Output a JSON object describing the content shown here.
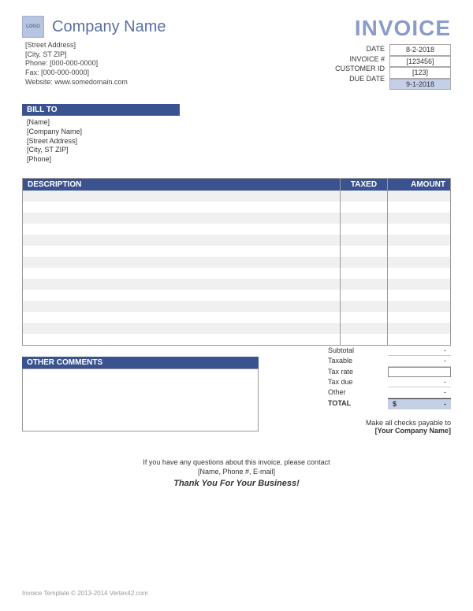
{
  "colors": {
    "brand": "#3a5390",
    "brand_light": "#8a9cc9",
    "highlight": "#c5cfe8",
    "stripe": "#f0f0f0"
  },
  "header": {
    "company_name": "Company Name",
    "logo_text": "LOGO",
    "address": {
      "street": "[Street Address]",
      "city": "[City, ST  ZIP]",
      "phone": "Phone: [000-000-0000]",
      "fax": "Fax: [000-000-0000]",
      "web": "Website: www.somedomain.com"
    },
    "invoice_title": "INVOICE",
    "meta_labels": {
      "date": "DATE",
      "invoice_no": "INVOICE #",
      "customer": "CUSTOMER ID",
      "due": "DUE DATE"
    },
    "meta_values": {
      "date": "8-2-2018",
      "invoice_no": "[123456]",
      "customer": "[123]",
      "due": "9-1-2018"
    }
  },
  "billto": {
    "header": "BILL TO",
    "name": "[Name]",
    "company": "[Company Name]",
    "street": "[Street Address]",
    "city": "[City, ST  ZIP]",
    "phone": "[Phone]"
  },
  "items": {
    "headers": {
      "desc": "DESCRIPTION",
      "taxed": "TAXED",
      "amount": "AMOUNT"
    },
    "row_count": 14
  },
  "totals": {
    "subtotal_label": "Subtotal",
    "subtotal": "-",
    "taxable_label": "Taxable",
    "taxable": "-",
    "taxrate_label": "Tax rate",
    "taxrate": "",
    "taxdue_label": "Tax due",
    "taxdue": "-",
    "other_label": "Other",
    "other": "-",
    "total_label": "TOTAL",
    "total_currency": "$",
    "total": "-"
  },
  "comments": {
    "header": "OTHER COMMENTS"
  },
  "payable": {
    "line1": "Make all checks payable to",
    "line2": "[Your Company Name]"
  },
  "footer": {
    "line1": "If you have any questions about this invoice, please contact",
    "line2": "[Name, Phone #, E-mail]",
    "thanks": "Thank You For Your Business!"
  },
  "copyright": "Invoice Template © 2013-2014 Vertex42.com"
}
